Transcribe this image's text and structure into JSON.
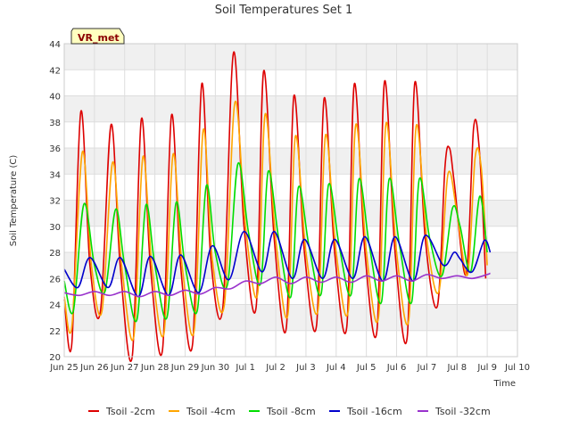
{
  "chart_data": {
    "type": "line",
    "title": "Soil Temperatures Set 1",
    "xlabel": "Time",
    "ylabel": "Soil Temperature (C)",
    "badge": "VR_met",
    "xlim": [
      0,
      15
    ],
    "ylim": [
      20,
      44
    ],
    "x_ticks": [
      {
        "v": 0,
        "label": "Jun 25"
      },
      {
        "v": 1,
        "label": "Jun 26"
      },
      {
        "v": 2,
        "label": "Jun 27"
      },
      {
        "v": 3,
        "label": "Jun 28"
      },
      {
        "v": 4,
        "label": "Jun 29"
      },
      {
        "v": 5,
        "label": "Jun 30"
      },
      {
        "v": 6,
        "label": "Jul 1"
      },
      {
        "v": 7,
        "label": "Jul 2"
      },
      {
        "v": 8,
        "label": "Jul 3"
      },
      {
        "v": 9,
        "label": "Jul 4"
      },
      {
        "v": 10,
        "label": "Jul 5"
      },
      {
        "v": 11,
        "label": "Jul 6"
      },
      {
        "v": 12,
        "label": "Jul 7"
      },
      {
        "v": 13,
        "label": "Jul 8"
      },
      {
        "v": 14,
        "label": "Jul 9"
      },
      {
        "v": 15,
        "label": "Jul 10"
      }
    ],
    "y_ticks": [
      20,
      22,
      24,
      26,
      28,
      30,
      32,
      34,
      36,
      38,
      40,
      42,
      44
    ],
    "grid": true,
    "legend_position": "bottom",
    "series": [
      {
        "name": "Tsoil -2cm",
        "color": "#dd0000",
        "points": [
          [
            0,
            24.4
          ],
          [
            0.25,
            21.0
          ],
          [
            0.55,
            38.8
          ],
          [
            0.85,
            27.0
          ],
          [
            1.2,
            23.5
          ],
          [
            1.55,
            37.8
          ],
          [
            1.85,
            27.0
          ],
          [
            2.25,
            20.0
          ],
          [
            2.55,
            38.2
          ],
          [
            2.85,
            27.0
          ],
          [
            3.25,
            20.5
          ],
          [
            3.55,
            38.5
          ],
          [
            3.85,
            27.0
          ],
          [
            4.25,
            21.0
          ],
          [
            4.55,
            40.9
          ],
          [
            4.85,
            27.5
          ],
          [
            5.25,
            23.8
          ],
          [
            5.6,
            43.3
          ],
          [
            5.95,
            30.0
          ],
          [
            6.35,
            23.8
          ],
          [
            6.6,
            41.9
          ],
          [
            6.95,
            29.0
          ],
          [
            7.35,
            22.2
          ],
          [
            7.6,
            40.0
          ],
          [
            7.95,
            28.0
          ],
          [
            8.35,
            22.4
          ],
          [
            8.6,
            39.8
          ],
          [
            8.95,
            28.0
          ],
          [
            9.35,
            22.3
          ],
          [
            9.6,
            40.9
          ],
          [
            9.95,
            28.0
          ],
          [
            10.35,
            22.0
          ],
          [
            10.6,
            41.1
          ],
          [
            10.95,
            28.0
          ],
          [
            11.35,
            21.5
          ],
          [
            11.6,
            41.0
          ],
          [
            11.95,
            29.0
          ],
          [
            12.35,
            23.9
          ],
          [
            12.6,
            34.5
          ],
          [
            12.75,
            36.0
          ],
          [
            12.9,
            33.5
          ],
          [
            13.3,
            26.3
          ],
          [
            13.55,
            37.6
          ],
          [
            13.75,
            35.5
          ],
          [
            13.95,
            26.0
          ]
        ]
      },
      {
        "name": "Tsoil -4cm",
        "color": "#ffa500",
        "points": [
          [
            0,
            24.6
          ],
          [
            0.25,
            22.3
          ],
          [
            0.6,
            35.7
          ],
          [
            0.9,
            27.0
          ],
          [
            1.25,
            23.5
          ],
          [
            1.6,
            34.9
          ],
          [
            1.9,
            27.0
          ],
          [
            2.3,
            21.5
          ],
          [
            2.6,
            35.3
          ],
          [
            2.9,
            27.0
          ],
          [
            3.3,
            21.8
          ],
          [
            3.6,
            35.5
          ],
          [
            3.9,
            27.0
          ],
          [
            4.3,
            22.0
          ],
          [
            4.6,
            37.4
          ],
          [
            4.9,
            27.5
          ],
          [
            5.3,
            24.0
          ],
          [
            5.65,
            39.5
          ],
          [
            6.0,
            30.0
          ],
          [
            6.4,
            24.8
          ],
          [
            6.65,
            38.6
          ],
          [
            7.0,
            29.0
          ],
          [
            7.4,
            23.2
          ],
          [
            7.65,
            36.9
          ],
          [
            8.0,
            28.0
          ],
          [
            8.4,
            23.6
          ],
          [
            8.65,
            37.0
          ],
          [
            9.0,
            28.0
          ],
          [
            9.4,
            23.5
          ],
          [
            9.65,
            37.8
          ],
          [
            10.0,
            28.0
          ],
          [
            10.4,
            23.0
          ],
          [
            10.65,
            37.9
          ],
          [
            11.0,
            28.0
          ],
          [
            11.4,
            22.8
          ],
          [
            11.65,
            37.7
          ],
          [
            12.0,
            29.0
          ],
          [
            12.4,
            25.0
          ],
          [
            12.7,
            34.0
          ],
          [
            13.0,
            31.0
          ],
          [
            13.35,
            26.3
          ],
          [
            13.6,
            35.3
          ],
          [
            13.8,
            34.5
          ],
          [
            14.0,
            27.0
          ]
        ]
      },
      {
        "name": "Tsoil -8cm",
        "color": "#00dd00",
        "points": [
          [
            0,
            25.8
          ],
          [
            0.3,
            23.5
          ],
          [
            0.65,
            31.7
          ],
          [
            1.0,
            27.0
          ],
          [
            1.35,
            25.0
          ],
          [
            1.7,
            31.3
          ],
          [
            2.0,
            27.0
          ],
          [
            2.4,
            22.8
          ],
          [
            2.7,
            31.6
          ],
          [
            3.0,
            27.0
          ],
          [
            3.4,
            23.0
          ],
          [
            3.7,
            31.8
          ],
          [
            4.0,
            27.0
          ],
          [
            4.4,
            23.5
          ],
          [
            4.7,
            33.1
          ],
          [
            5.0,
            28.0
          ],
          [
            5.4,
            25.5
          ],
          [
            5.75,
            34.8
          ],
          [
            6.1,
            29.5
          ],
          [
            6.5,
            25.6
          ],
          [
            6.75,
            34.2
          ],
          [
            7.1,
            29.0
          ],
          [
            7.5,
            24.6
          ],
          [
            7.75,
            33.0
          ],
          [
            8.1,
            28.5
          ],
          [
            8.5,
            24.8
          ],
          [
            8.75,
            33.2
          ],
          [
            9.1,
            28.5
          ],
          [
            9.5,
            24.8
          ],
          [
            9.75,
            33.6
          ],
          [
            10.1,
            28.5
          ],
          [
            10.5,
            24.2
          ],
          [
            10.75,
            33.6
          ],
          [
            11.1,
            28.5
          ],
          [
            11.5,
            24.2
          ],
          [
            11.75,
            33.6
          ],
          [
            12.1,
            29.0
          ],
          [
            12.5,
            26.2
          ],
          [
            12.85,
            31.4
          ],
          [
            13.1,
            30.0
          ],
          [
            13.45,
            26.5
          ],
          [
            13.75,
            32.3
          ],
          [
            14.0,
            28.0
          ]
        ]
      },
      {
        "name": "Tsoil -16cm",
        "color": "#0000cc",
        "points": [
          [
            0,
            26.7
          ],
          [
            0.45,
            25.3
          ],
          [
            0.85,
            27.6
          ],
          [
            1.45,
            25.3
          ],
          [
            1.85,
            27.6
          ],
          [
            2.45,
            24.6
          ],
          [
            2.85,
            27.7
          ],
          [
            3.45,
            24.7
          ],
          [
            3.85,
            27.8
          ],
          [
            4.45,
            24.9
          ],
          [
            4.9,
            28.5
          ],
          [
            5.45,
            25.9
          ],
          [
            5.95,
            29.6
          ],
          [
            6.55,
            26.5
          ],
          [
            6.95,
            29.6
          ],
          [
            7.55,
            26.0
          ],
          [
            7.95,
            29.0
          ],
          [
            8.55,
            26.0
          ],
          [
            8.95,
            29.0
          ],
          [
            9.55,
            26.0
          ],
          [
            9.95,
            29.2
          ],
          [
            10.55,
            25.8
          ],
          [
            10.95,
            29.2
          ],
          [
            11.55,
            25.8
          ],
          [
            11.95,
            29.3
          ],
          [
            12.55,
            27.0
          ],
          [
            12.9,
            28.0
          ],
          [
            13.1,
            27.5
          ],
          [
            13.5,
            26.5
          ],
          [
            13.9,
            28.9
          ],
          [
            14.1,
            28.0
          ]
        ]
      },
      {
        "name": "Tsoil -32cm",
        "color": "#9933cc",
        "points": [
          [
            0,
            24.9
          ],
          [
            0.5,
            24.7
          ],
          [
            1.0,
            25.0
          ],
          [
            1.5,
            24.7
          ],
          [
            2.0,
            25.0
          ],
          [
            2.5,
            24.6
          ],
          [
            3.0,
            25.0
          ],
          [
            3.5,
            24.7
          ],
          [
            4.0,
            25.1
          ],
          [
            4.5,
            24.8
          ],
          [
            5.0,
            25.3
          ],
          [
            5.5,
            25.2
          ],
          [
            6.0,
            25.8
          ],
          [
            6.5,
            25.6
          ],
          [
            7.0,
            26.1
          ],
          [
            7.5,
            25.6
          ],
          [
            8.0,
            26.1
          ],
          [
            8.5,
            25.7
          ],
          [
            9.0,
            26.1
          ],
          [
            9.5,
            25.7
          ],
          [
            10.0,
            26.2
          ],
          [
            10.5,
            25.8
          ],
          [
            11.0,
            26.2
          ],
          [
            11.5,
            25.8
          ],
          [
            12.0,
            26.3
          ],
          [
            12.5,
            26.0
          ],
          [
            13.0,
            26.2
          ],
          [
            13.5,
            26.0
          ],
          [
            14.0,
            26.3
          ],
          [
            14.1,
            26.4
          ]
        ]
      }
    ]
  }
}
